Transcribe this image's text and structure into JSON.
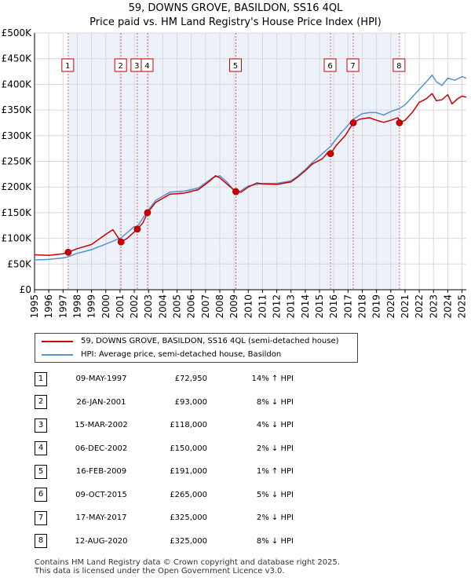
{
  "title_line1": "59, DOWNS GROVE, BASILDON, SS16 4QL",
  "title_line2": "Price paid vs. HM Land Registry's House Price Index (HPI)",
  "colors": {
    "price": "#cc0000",
    "hpi": "#5b8fd4",
    "sale_band": "#dde6f5",
    "vline": "#e06070"
  },
  "legend": {
    "price_label": "59, DOWNS GROVE, BASILDON, SS16 4QL (semi-detached house)",
    "hpi_label": "HPI: Average price, semi-detached house, Basildon"
  },
  "chart_data": {
    "type": "line",
    "xlabel": "",
    "ylabel": "",
    "xlim": [
      1995,
      2025.3
    ],
    "ylim": [
      0,
      500000
    ],
    "x_ticks": [
      "1995",
      "1996",
      "1997",
      "1998",
      "1999",
      "2000",
      "2001",
      "2002",
      "2003",
      "2004",
      "2005",
      "2006",
      "2007",
      "2008",
      "2009",
      "2010",
      "2011",
      "2012",
      "2013",
      "2014",
      "2015",
      "2016",
      "2017",
      "2018",
      "2019",
      "2020",
      "2021",
      "2022",
      "2023",
      "2024",
      "2025"
    ],
    "y_ticks": [
      {
        "v": 0,
        "label": "£0"
      },
      {
        "v": 50000,
        "label": "£50K"
      },
      {
        "v": 100000,
        "label": "£100K"
      },
      {
        "v": 150000,
        "label": "£150K"
      },
      {
        "v": 200000,
        "label": "£200K"
      },
      {
        "v": 250000,
        "label": "£250K"
      },
      {
        "v": 300000,
        "label": "£300K"
      },
      {
        "v": 350000,
        "label": "£350K"
      },
      {
        "v": 400000,
        "label": "£400K"
      },
      {
        "v": 450000,
        "label": "£450K"
      },
      {
        "v": 500000,
        "label": "£500K"
      }
    ],
    "grid": true,
    "series": [
      {
        "name": "59, DOWNS GROVE, BASILDON, SS16 4QL (semi-detached house)",
        "points": [
          [
            1995.0,
            68000
          ],
          [
            1996.0,
            67000
          ],
          [
            1997.0,
            70000
          ],
          [
            1997.36,
            72950
          ],
          [
            1998.0,
            80000
          ],
          [
            1999.0,
            88000
          ],
          [
            2000.0,
            108000
          ],
          [
            2000.5,
            117000
          ],
          [
            2001.07,
            93000
          ],
          [
            2001.5,
            100000
          ],
          [
            2002.21,
            118000
          ],
          [
            2002.6,
            130000
          ],
          [
            2002.93,
            150000
          ],
          [
            2003.5,
            170000
          ],
          [
            2004.5,
            186000
          ],
          [
            2005.5,
            188000
          ],
          [
            2006.5,
            195000
          ],
          [
            2007.3,
            212000
          ],
          [
            2007.7,
            222000
          ],
          [
            2008.0,
            218000
          ],
          [
            2008.5,
            206000
          ],
          [
            2009.13,
            191000
          ],
          [
            2009.5,
            190000
          ],
          [
            2010.0,
            200000
          ],
          [
            2010.6,
            208000
          ],
          [
            2011.0,
            206000
          ],
          [
            2012.0,
            205000
          ],
          [
            2013.0,
            210000
          ],
          [
            2013.5,
            220000
          ],
          [
            2014.0,
            232000
          ],
          [
            2014.5,
            245000
          ],
          [
            2015.2,
            255000
          ],
          [
            2015.6,
            268000
          ],
          [
            2015.77,
            265000
          ],
          [
            2016.2,
            282000
          ],
          [
            2016.8,
            300000
          ],
          [
            2017.37,
            325000
          ],
          [
            2017.8,
            332000
          ],
          [
            2018.5,
            335000
          ],
          [
            2019.0,
            330000
          ],
          [
            2019.5,
            326000
          ],
          [
            2020.0,
            330000
          ],
          [
            2020.5,
            335000
          ],
          [
            2020.61,
            325000
          ],
          [
            2021.0,
            330000
          ],
          [
            2021.5,
            345000
          ],
          [
            2022.0,
            365000
          ],
          [
            2022.5,
            372000
          ],
          [
            2022.9,
            382000
          ],
          [
            2023.2,
            368000
          ],
          [
            2023.6,
            370000
          ],
          [
            2024.0,
            380000
          ],
          [
            2024.3,
            362000
          ],
          [
            2024.7,
            372000
          ],
          [
            2025.0,
            377000
          ],
          [
            2025.3,
            375000
          ]
        ]
      },
      {
        "name": "HPI: Average price, semi-detached house, Basildon",
        "points": [
          [
            1995.0,
            58000
          ],
          [
            1996.0,
            59000
          ],
          [
            1997.0,
            62000
          ],
          [
            1997.36,
            64000
          ],
          [
            1998.0,
            71000
          ],
          [
            1999.0,
            78000
          ],
          [
            2000.0,
            89000
          ],
          [
            2001.07,
            101000
          ],
          [
            2002.0,
            123000
          ],
          [
            2002.21,
            123000
          ],
          [
            2002.93,
            153000
          ],
          [
            2003.5,
            174000
          ],
          [
            2004.5,
            190000
          ],
          [
            2005.5,
            192000
          ],
          [
            2006.5,
            198000
          ],
          [
            2007.5,
            218000
          ],
          [
            2008.0,
            222000
          ],
          [
            2008.5,
            210000
          ],
          [
            2009.13,
            189000
          ],
          [
            2009.5,
            193000
          ],
          [
            2010.0,
            202000
          ],
          [
            2011.0,
            207000
          ],
          [
            2012.0,
            207000
          ],
          [
            2013.0,
            212000
          ],
          [
            2013.5,
            222000
          ],
          [
            2014.0,
            234000
          ],
          [
            2014.5,
            248000
          ],
          [
            2015.2,
            265000
          ],
          [
            2015.77,
            279000
          ],
          [
            2016.5,
            305000
          ],
          [
            2017.37,
            332000
          ],
          [
            2018.0,
            343000
          ],
          [
            2018.5,
            345000
          ],
          [
            2019.0,
            345000
          ],
          [
            2019.5,
            340000
          ],
          [
            2020.0,
            347000
          ],
          [
            2020.61,
            353000
          ],
          [
            2021.0,
            360000
          ],
          [
            2021.5,
            375000
          ],
          [
            2022.0,
            390000
          ],
          [
            2022.5,
            405000
          ],
          [
            2022.9,
            418000
          ],
          [
            2023.2,
            405000
          ],
          [
            2023.6,
            398000
          ],
          [
            2024.0,
            412000
          ],
          [
            2024.5,
            408000
          ],
          [
            2025.0,
            415000
          ],
          [
            2025.3,
            412000
          ]
        ]
      }
    ],
    "sales": [
      {
        "n": "1",
        "x": 1997.36,
        "y": 72950
      },
      {
        "n": "2",
        "x": 2001.07,
        "y": 93000
      },
      {
        "n": "3",
        "x": 2002.21,
        "y": 118000
      },
      {
        "n": "4",
        "x": 2002.93,
        "y": 150000
      },
      {
        "n": "5",
        "x": 2009.13,
        "y": 191000
      },
      {
        "n": "6",
        "x": 2015.77,
        "y": 265000
      },
      {
        "n": "7",
        "x": 2017.37,
        "y": 325000
      },
      {
        "n": "8",
        "x": 2020.61,
        "y": 325000
      }
    ]
  },
  "sales_table": [
    {
      "num": "1",
      "date": "09-MAY-1997",
      "price": "£72,950",
      "hpi": "14% ↑ HPI"
    },
    {
      "num": "2",
      "date": "26-JAN-2001",
      "price": "£93,000",
      "hpi": "8% ↓ HPI"
    },
    {
      "num": "3",
      "date": "15-MAR-2002",
      "price": "£118,000",
      "hpi": "4% ↓ HPI"
    },
    {
      "num": "4",
      "date": "06-DEC-2002",
      "price": "£150,000",
      "hpi": "2% ↓ HPI"
    },
    {
      "num": "5",
      "date": "16-FEB-2009",
      "price": "£191,000",
      "hpi": "1% ↑ HPI"
    },
    {
      "num": "6",
      "date": "09-OCT-2015",
      "price": "£265,000",
      "hpi": "5% ↓ HPI"
    },
    {
      "num": "7",
      "date": "17-MAY-2017",
      "price": "£325,000",
      "hpi": "2% ↓ HPI"
    },
    {
      "num": "8",
      "date": "12-AUG-2020",
      "price": "£325,000",
      "hpi": "8% ↓ HPI"
    }
  ],
  "footer": {
    "line1": "Contains HM Land Registry data © Crown copyright and database right 2025.",
    "line2": "This data is licensed under the Open Government Licence v3.0."
  }
}
